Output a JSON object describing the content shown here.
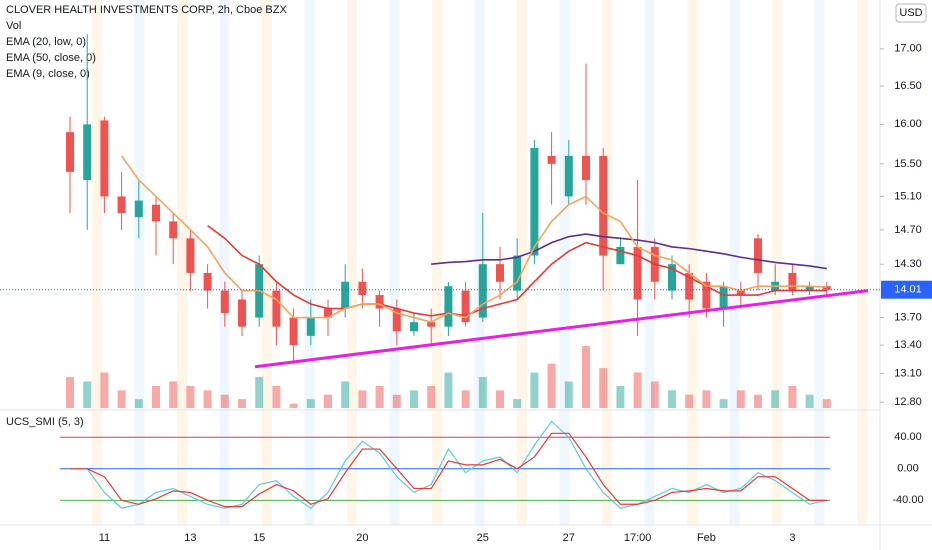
{
  "chart_data": [
    {
      "type": "candlestick",
      "title": "CLOVER HEALTH INVESTMENTS CORP, 2h, Cboe BZX",
      "currency": "USD",
      "volume_label": "Vol",
      "categories": [
        null,
        null,
        "11",
        null,
        null,
        null,
        null,
        "13",
        null,
        null,
        null,
        "15",
        null,
        null,
        null,
        null,
        null,
        "20",
        null,
        null,
        null,
        null,
        null,
        null,
        "25",
        null,
        null,
        null,
        null,
        "27",
        null,
        null,
        null,
        "17:00",
        null,
        null,
        null,
        "Feb",
        null,
        null,
        null,
        null,
        "3",
        null,
        null
      ],
      "open": [
        15.9,
        15.3,
        16.05,
        15.1,
        14.85,
        15.0,
        14.8,
        14.6,
        14.2,
        14.0,
        13.9,
        13.7,
        14.0,
        13.7,
        13.5,
        13.8,
        13.8,
        14.1,
        13.95,
        13.8,
        13.55,
        13.65,
        13.6,
        14.0,
        13.7,
        14.3,
        14.0,
        14.4,
        15.6,
        15.1,
        15.6,
        15.6,
        14.3,
        14.5,
        14.5,
        14.0,
        14.2,
        14.1,
        13.8,
        14.0,
        14.6,
        14.0,
        14.2,
        14.0,
        14.05
      ],
      "high": [
        16.1,
        17.2,
        16.1,
        15.4,
        15.3,
        15.1,
        14.9,
        14.7,
        14.3,
        14.1,
        14.0,
        14.4,
        14.1,
        13.8,
        13.9,
        13.9,
        14.3,
        14.25,
        14.0,
        13.9,
        13.75,
        13.8,
        14.1,
        14.1,
        14.9,
        14.5,
        14.6,
        15.8,
        15.9,
        15.8,
        16.8,
        15.7,
        14.6,
        15.3,
        14.6,
        14.4,
        14.3,
        14.2,
        14.1,
        14.1,
        14.65,
        14.3,
        14.3,
        14.1,
        14.1
      ],
      "low": [
        14.9,
        14.7,
        14.9,
        14.7,
        14.6,
        14.4,
        14.3,
        14.0,
        13.8,
        13.6,
        13.5,
        13.6,
        13.4,
        13.2,
        13.4,
        13.5,
        13.7,
        13.8,
        13.6,
        13.4,
        13.5,
        13.4,
        13.5,
        13.6,
        13.65,
        13.9,
        13.9,
        14.3,
        15.0,
        15.0,
        15.0,
        14.0,
        14.3,
        13.5,
        13.9,
        13.9,
        13.7,
        13.7,
        13.6,
        13.8,
        14.0,
        13.95,
        13.95,
        13.95,
        13.95
      ],
      "close": [
        15.4,
        16.0,
        15.1,
        14.9,
        15.05,
        14.8,
        14.6,
        14.2,
        14.0,
        13.75,
        13.6,
        14.3,
        13.6,
        13.4,
        13.7,
        13.7,
        14.1,
        13.95,
        13.8,
        13.55,
        13.65,
        13.6,
        14.05,
        13.65,
        14.3,
        14.1,
        14.4,
        15.7,
        15.5,
        15.6,
        15.3,
        14.4,
        14.5,
        13.9,
        14.1,
        14.3,
        13.9,
        13.8,
        14.05,
        13.95,
        14.2,
        14.1,
        14.0,
        14.05,
        14.01
      ],
      "volume": [
        35,
        30,
        40,
        20,
        10,
        25,
        30,
        25,
        20,
        15,
        10,
        35,
        25,
        5,
        10,
        15,
        30,
        20,
        25,
        15,
        20,
        25,
        40,
        20,
        35,
        20,
        10,
        40,
        50,
        30,
        70,
        45,
        25,
        40,
        30,
        20,
        15,
        20,
        10,
        20,
        15,
        20,
        25,
        15,
        10
      ],
      "up_color": "#26a69a",
      "down_color": "#ef5350",
      "series": [
        {
          "name": "EMA (20, low, 0)",
          "color": "#e53935",
          "values": [
            null,
            null,
            null,
            null,
            null,
            null,
            null,
            null,
            14.75,
            14.6,
            14.4,
            14.3,
            14.1,
            13.95,
            13.85,
            13.8,
            13.8,
            13.85,
            13.85,
            13.8,
            13.75,
            13.72,
            13.75,
            13.72,
            13.8,
            13.85,
            13.9,
            14.1,
            14.3,
            14.45,
            14.55,
            14.5,
            14.45,
            14.4,
            14.3,
            14.25,
            14.15,
            14.05,
            13.95,
            13.95,
            13.95,
            14.0,
            14.0,
            14.0,
            14.0
          ]
        },
        {
          "name": "EMA (50, close, 0)",
          "color": "#5e2d91",
          "values": [
            null,
            null,
            null,
            null,
            null,
            null,
            null,
            null,
            null,
            null,
            null,
            null,
            null,
            null,
            null,
            null,
            null,
            null,
            null,
            null,
            null,
            14.3,
            14.32,
            14.33,
            14.35,
            14.35,
            14.38,
            14.45,
            14.55,
            14.62,
            14.65,
            14.62,
            14.6,
            14.58,
            14.55,
            14.5,
            14.48,
            14.45,
            14.42,
            14.38,
            14.35,
            14.32,
            14.3,
            14.28,
            14.25
          ]
        },
        {
          "name": "EMA (9, close, 0)",
          "color": "#f7a35c",
          "values": [
            null,
            null,
            null,
            15.6,
            15.3,
            15.1,
            14.9,
            14.7,
            14.5,
            14.2,
            14.0,
            14.0,
            13.9,
            13.7,
            13.7,
            13.7,
            13.8,
            13.85,
            13.85,
            13.75,
            13.7,
            13.65,
            13.75,
            13.7,
            13.85,
            13.95,
            14.1,
            14.5,
            14.8,
            15.0,
            15.1,
            14.9,
            14.8,
            14.5,
            14.4,
            14.35,
            14.2,
            14.05,
            14.05,
            14.0,
            14.05,
            14.05,
            14.05,
            14.05,
            14.04
          ]
        }
      ],
      "trendline": {
        "values": [
          13.17,
          14.0
        ],
        "color": "#e91ee6"
      },
      "last_price": 14.01,
      "last_price_color": "#2962ff",
      "log": true,
      "ylim": [
        12.72,
        17.68
      ],
      "yticks": [
        {
          "value": 17,
          "label": "17.00"
        },
        {
          "value": 16.5,
          "label": "16.50"
        },
        {
          "value": 16,
          "label": "16.00"
        },
        {
          "value": 15.5,
          "label": "15.50"
        },
        {
          "value": 15.1,
          "label": "15.10"
        },
        {
          "value": 14.7,
          "label": "14.70"
        },
        {
          "value": 14.3,
          "label": "14.30"
        },
        {
          "value": 13.7,
          "label": "13.70"
        },
        {
          "value": 13.4,
          "label": "13.40"
        },
        {
          "value": 13.1,
          "label": "13.10"
        },
        {
          "value": 12.8,
          "label": "12.80"
        }
      ]
    },
    {
      "type": "line",
      "title": "UCS_SMI (5, 3)",
      "series": [
        {
          "color": "#5ec8e6",
          "values": [
            0,
            0,
            -30,
            -50,
            -45,
            -30,
            -25,
            -35,
            -45,
            -50,
            -45,
            -20,
            -15,
            -35,
            -50,
            -30,
            10,
            35,
            20,
            -10,
            -30,
            -20,
            25,
            -5,
            10,
            15,
            -5,
            30,
            60,
            40,
            0,
            -30,
            -50,
            -45,
            -35,
            -25,
            -30,
            -20,
            -30,
            -25,
            -5,
            -15,
            -30,
            -45,
            -40
          ]
        },
        {
          "color": "#e53935",
          "values": [
            0,
            0,
            -10,
            -40,
            -45,
            -38,
            -28,
            -30,
            -40,
            -48,
            -48,
            -32,
            -20,
            -28,
            -45,
            -38,
            -5,
            25,
            25,
            0,
            -25,
            -25,
            10,
            5,
            5,
            12,
            0,
            15,
            45,
            45,
            15,
            -20,
            -45,
            -45,
            -40,
            -30,
            -28,
            -25,
            -28,
            -28,
            -10,
            -10,
            -25,
            -40,
            -40
          ]
        }
      ],
      "ylim": [
        -70,
        72
      ],
      "yticks": [
        {
          "value": 40,
          "label": "40.00"
        },
        {
          "value": 0,
          "label": "0.00"
        },
        {
          "value": -40,
          "label": "-40.00"
        }
      ],
      "level_colors": [
        "#f23645",
        "#2962ff",
        "#4caf50"
      ]
    }
  ]
}
